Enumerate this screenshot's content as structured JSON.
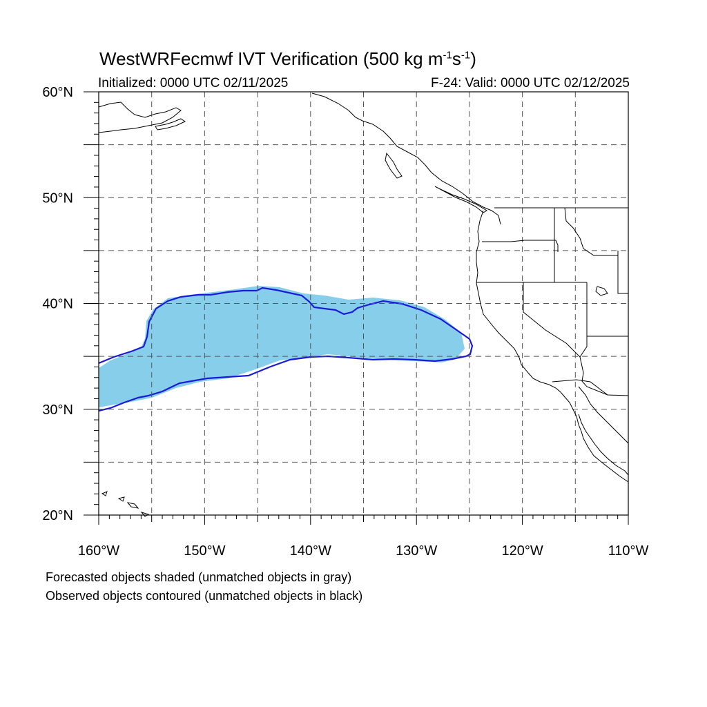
{
  "title": {
    "main": "WestWRFecmwf IVT Verification (500 kg m",
    "exp1": "-1",
    "mid": "s",
    "exp2": "-1",
    "end": ")"
  },
  "subtitle_left": "Initialized: 0000 UTC 02/11/2025",
  "subtitle_right": "F-24: Valid: 0000 UTC 02/12/2025",
  "lat_labels": [
    "60°N",
    "50°N",
    "40°N",
    "30°N",
    "20°N"
  ],
  "lon_labels": [
    "160°W",
    "150°W",
    "140°W",
    "130°W",
    "120°W",
    "110°W"
  ],
  "notes": [
    "Forecasted objects shaded (unmatched objects in gray)",
    "Observed objects contoured (unmatched objects in black)"
  ],
  "map": {
    "lon_range": [
      -160,
      -110
    ],
    "lat_range": [
      20,
      60
    ],
    "grid_interval_deg": 5,
    "grid_style": "dashed",
    "forecast_fill_color": "#87ceeb",
    "observed_contour_color": "#1a1adb",
    "coastline_color": "#000000"
  }
}
